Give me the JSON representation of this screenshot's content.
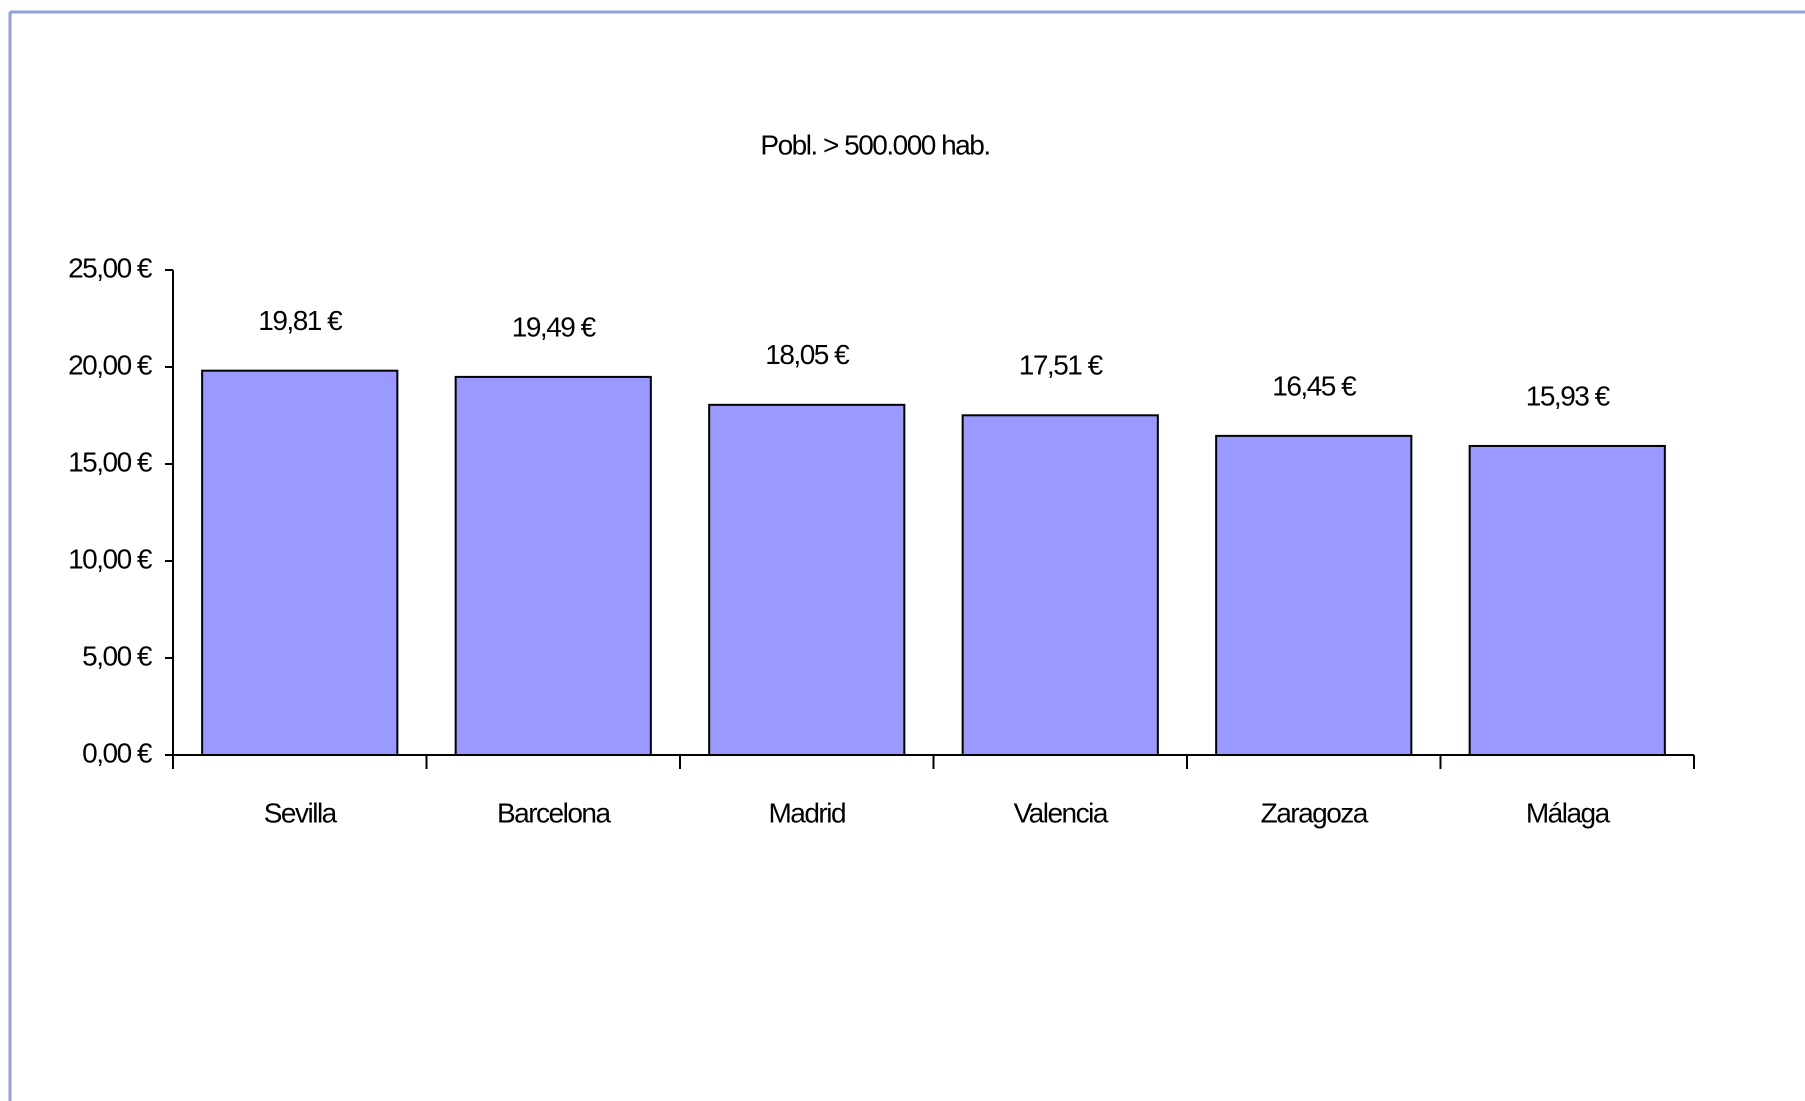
{
  "chart_data": {
    "type": "bar",
    "title": "Pobl. > 500.000 hab.",
    "categories": [
      "Sevilla",
      "Barcelona",
      "Madrid",
      "Valencia",
      "Zaragoza",
      "Málaga"
    ],
    "values": [
      19.81,
      19.49,
      18.05,
      17.51,
      16.45,
      15.93
    ],
    "value_labels": [
      "19,81 €",
      "19,49 €",
      "18,05 €",
      "17,51 €",
      "16,45 €",
      "15,93 €"
    ],
    "color": "#9999ff",
    "ylim": [
      0,
      25
    ],
    "yticks": [
      {
        "value": 0,
        "label": "0,00 €"
      },
      {
        "value": 5,
        "label": "5,00 €"
      },
      {
        "value": 10,
        "label": "10,00 €"
      },
      {
        "value": 15,
        "label": "15,00 €"
      },
      {
        "value": 20,
        "label": "20,00 €"
      },
      {
        "value": 25,
        "label": "25,00 €"
      }
    ],
    "grid": false
  }
}
